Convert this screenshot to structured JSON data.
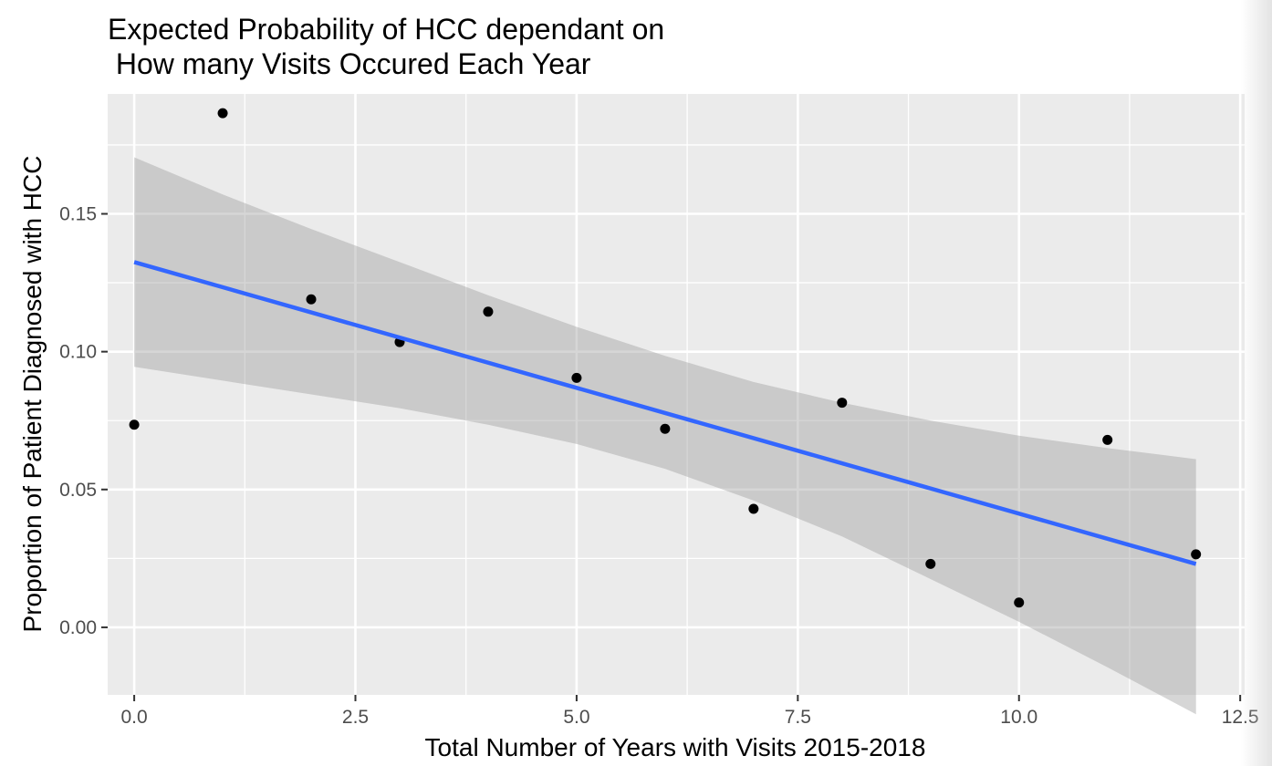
{
  "chart_data": {
    "type": "scatter",
    "title_lines": [
      "Expected Probability of HCC dependant on",
      " How many Visits Occured Each Year"
    ],
    "xlabel": "Total Number of Years with Visits 2015-2018",
    "ylabel": "Proportion of Patient Diagnosed with HCC",
    "xlim": [
      -0.3,
      12.55
    ],
    "ylim": [
      -0.0245,
      0.1935
    ],
    "x_ticks": [
      0.0,
      2.5,
      5.0,
      7.5,
      10.0,
      12.5
    ],
    "x_tick_labels": [
      "0.0",
      "2.5",
      "5.0",
      "7.5",
      "10.0",
      "12.5"
    ],
    "y_ticks": [
      0.0,
      0.05,
      0.1,
      0.15
    ],
    "y_tick_labels": [
      "0.00",
      "0.05",
      "0.10",
      "0.15"
    ],
    "grid": true,
    "points": [
      {
        "x": 0,
        "y": 0.0735
      },
      {
        "x": 1,
        "y": 0.1865
      },
      {
        "x": 2,
        "y": 0.119
      },
      {
        "x": 3,
        "y": 0.1035
      },
      {
        "x": 4,
        "y": 0.1145
      },
      {
        "x": 5,
        "y": 0.0905
      },
      {
        "x": 6,
        "y": 0.072
      },
      {
        "x": 7,
        "y": 0.043
      },
      {
        "x": 8,
        "y": 0.0815
      },
      {
        "x": 9,
        "y": 0.023
      },
      {
        "x": 10,
        "y": 0.009
      },
      {
        "x": 11,
        "y": 0.068
      },
      {
        "x": 12,
        "y": 0.0265
      }
    ],
    "fit_line": {
      "method": "linear",
      "x": [
        0,
        12
      ],
      "y": [
        0.1325,
        0.023
      ],
      "color": "#3366FF"
    },
    "confidence_band": {
      "x": [
        0,
        1,
        2,
        3,
        4,
        5,
        6,
        7,
        8,
        9,
        10,
        11,
        12
      ],
      "lower": [
        0.0945,
        0.0895,
        0.0845,
        0.0795,
        0.0735,
        0.0665,
        0.0575,
        0.046,
        0.033,
        0.0175,
        0.002,
        -0.0145,
        -0.0315
      ],
      "upper": [
        0.1705,
        0.157,
        0.1445,
        0.1325,
        0.1205,
        0.109,
        0.0985,
        0.089,
        0.0815,
        0.075,
        0.0695,
        0.065,
        0.061
      ],
      "color": "#999999"
    },
    "colors": {
      "panel_background": "#EBEBEB",
      "grid": "#FFFFFF",
      "point": "#000000",
      "tick_label": "#4D4D4D",
      "tick_mark": "#333333"
    }
  }
}
